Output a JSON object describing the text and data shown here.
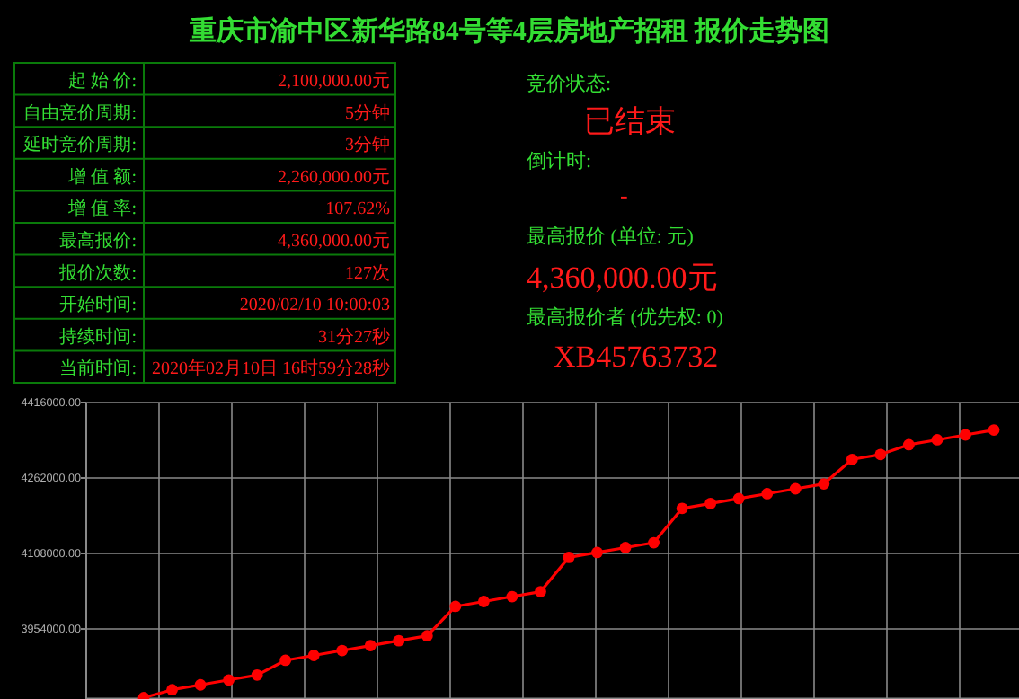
{
  "chart_data": [
    {
      "type": "other",
      "title": "重庆市渝中区新华路84号等4层房地产招租 报价走势图",
      "annotations": [
        "起 始 价:",
        "2,100,000.00元",
        "自由竞价周期:",
        "5分钟",
        "延时竞价周期:",
        "3分钟",
        "增 值 额:",
        "2,260,000.00元",
        "增 值 率:",
        "107.62%",
        "最高报价:",
        "4,360,000.00元",
        "报价次数:",
        "127次",
        "开始时间:",
        "2020/02/10 10:00:03",
        "持续时间:",
        "31分27秒",
        "当前时间:",
        "2020年02月10日 16时59分28秒"
      ]
    },
    {
      "type": "other",
      "annotations": [
        "竞价状态:",
        "已结束",
        "倒计时:",
        "-",
        "最高报价 (单位: 元)",
        "4,360,000.00元",
        "最高报价者 (优先权: 0)",
        "XB45763732"
      ]
    },
    {
      "type": "line",
      "categories": [
        null,
        null,
        null,
        null,
        null,
        null,
        null,
        null,
        null,
        null,
        null,
        null,
        null,
        null,
        null,
        null,
        null,
        null,
        null,
        null,
        null,
        null,
        null,
        null,
        null,
        null,
        null,
        null,
        null,
        null,
        null
      ],
      "series": [
        {
          "color": "#ff0000",
          "values": [
            3814000,
            3830000,
            3840000,
            3850000,
            3860000,
            3890000,
            3900000,
            3910000,
            3920000,
            3930000,
            3940000,
            4000000,
            4010000,
            4020000,
            4030000,
            4100000,
            4110000,
            4120000,
            4130000,
            4200000,
            4210000,
            4220000,
            4230000,
            4240000,
            4250000,
            4300000,
            4310000,
            4330000,
            4340000,
            4350000,
            4360000
          ]
        }
      ],
      "ylim": [
        3810000,
        4416000
      ],
      "yticks": [
        {
          "value": 3954000,
          "label": "3954000.00"
        },
        {
          "value": 4108000,
          "label": "4108000.00"
        },
        {
          "value": 4262000,
          "label": "4262000.00"
        },
        {
          "value": 4416000,
          "label": "4416000.00"
        }
      ],
      "grid": true,
      "marker": "circle",
      "line_style": "solid",
      "tick_labels": "y"
    }
  ]
}
